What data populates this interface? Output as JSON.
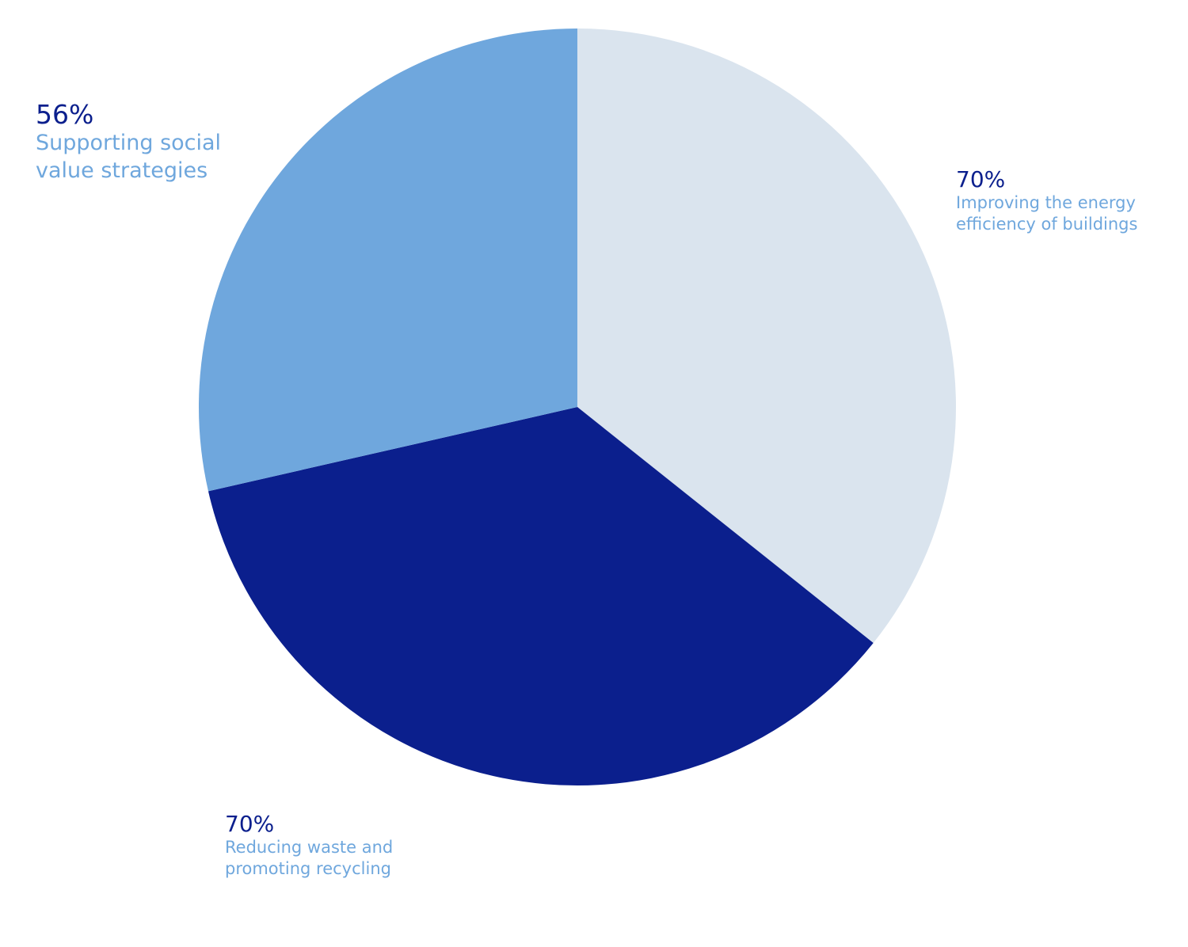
{
  "chart_data": {
    "type": "pie",
    "slices": [
      {
        "value_label": "70%",
        "label_line1": "Improving the energy",
        "label_line2": "efficiency of buildings",
        "value": 70,
        "color": "#dae4ee"
      },
      {
        "value_label": "70%",
        "label_line1": "Reducing waste and",
        "label_line2": "promoting recycling",
        "value": 70,
        "color": "#0b1f8d"
      },
      {
        "value_label": "56%",
        "label_line1": "Supporting social",
        "label_line2": "value strategies",
        "value": 56,
        "color": "#6fa7dd"
      }
    ],
    "start_angle": "12 o'clock",
    "direction": "clockwise",
    "colors": {
      "value_text": "#0b1f8d",
      "label_text": "#6fa7dd"
    }
  }
}
